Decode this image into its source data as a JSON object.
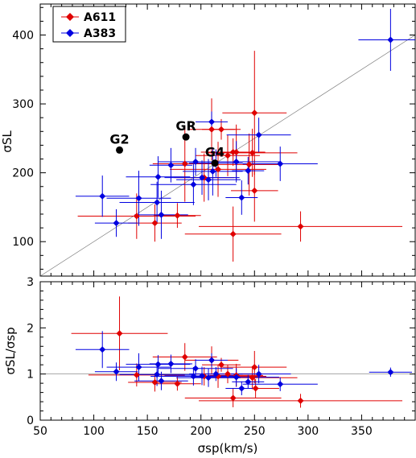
{
  "chart_data": [
    {
      "type": "scatter",
      "xlabel": "",
      "ylabel": "σSL",
      "xlim": [
        50,
        400
      ],
      "ylim": [
        50,
        445
      ],
      "x_ticks": [
        "50",
        "100",
        "150",
        "200",
        "250",
        "300",
        "350"
      ],
      "y_ticks": [
        "100",
        "200",
        "300",
        "400"
      ],
      "reference_line": "y = x",
      "legend": {
        "placement": "top-left",
        "entries": [
          "A611",
          "A383"
        ]
      },
      "series": [
        {
          "name": "A611",
          "color": "#e00000",
          "marker": "diamond",
          "points": [
            {
              "x": 140,
              "y": 137,
              "xerr": 55,
              "yerr": 33
            },
            {
              "x": 157,
              "y": 127,
              "xerr": 25,
              "yerr": 27
            },
            {
              "x": 178,
              "y": 138,
              "xerr": 22,
              "yerr": 18
            },
            {
              "x": 185,
              "y": 213,
              "xerr": 30,
              "yerr": 55
            },
            {
              "x": 203,
              "y": 193,
              "xerr": 28,
              "yerr": 35
            },
            {
              "x": 210,
              "y": 263,
              "xerr": 22,
              "yerr": 45
            },
            {
              "x": 216,
              "y": 205,
              "xerr": 45,
              "yerr": 40
            },
            {
              "x": 219,
              "y": 263,
              "xerr": 18,
              "yerr": 15
            },
            {
              "x": 225,
              "y": 225,
              "xerr": 30,
              "yerr": 30
            },
            {
              "x": 230,
              "y": 230,
              "xerr": 30,
              "yerr": 20
            },
            {
              "x": 233,
              "y": 230,
              "xerr": 25,
              "yerr": 40
            },
            {
              "x": 230,
              "y": 111,
              "xerr": 45,
              "yerr": 40
            },
            {
              "x": 245,
              "y": 212,
              "xerr": 30,
              "yerr": 45
            },
            {
              "x": 248,
              "y": 229,
              "xerr": 42,
              "yerr": 35
            },
            {
              "x": 250,
              "y": 287,
              "xerr": 30,
              "yerr": 90
            },
            {
              "x": 250,
              "y": 174,
              "xerr": 22,
              "yerr": 45
            },
            {
              "x": 293,
              "y": 122,
              "xerr": 95,
              "yerr": 22
            }
          ]
        },
        {
          "name": "A383",
          "color": "#0000e0",
          "marker": "diamond",
          "points": [
            {
              "x": 108,
              "y": 166,
              "xerr": 25,
              "yerr": 30
            },
            {
              "x": 121,
              "y": 127,
              "xerr": 20,
              "yerr": 20
            },
            {
              "x": 142,
              "y": 163,
              "xerr": 30,
              "yerr": 40
            },
            {
              "x": 159,
              "y": 157,
              "xerr": 35,
              "yerr": 30
            },
            {
              "x": 160,
              "y": 194,
              "xerr": 30,
              "yerr": 30
            },
            {
              "x": 163,
              "y": 139,
              "xerr": 25,
              "yerr": 35
            },
            {
              "x": 172,
              "y": 211,
              "xerr": 20,
              "yerr": 25
            },
            {
              "x": 193,
              "y": 183,
              "xerr": 40,
              "yerr": 30
            },
            {
              "x": 195,
              "y": 216,
              "xerr": 35,
              "yerr": 20
            },
            {
              "x": 201,
              "y": 193,
              "xerr": 35,
              "yerr": 25
            },
            {
              "x": 207,
              "y": 190,
              "xerr": 30,
              "yerr": 30
            },
            {
              "x": 210,
              "y": 274,
              "xerr": 15,
              "yerr": 15
            },
            {
              "x": 211,
              "y": 202,
              "xerr": 28,
              "yerr": 35
            },
            {
              "x": 214,
              "y": 214,
              "xerr": 25,
              "yerr": 20
            },
            {
              "x": 233,
              "y": 216,
              "xerr": 40,
              "yerr": 30
            },
            {
              "x": 238,
              "y": 164,
              "xerr": 15,
              "yerr": 25
            },
            {
              "x": 244,
              "y": 203,
              "xerr": 15,
              "yerr": 20
            },
            {
              "x": 254,
              "y": 255,
              "xerr": 30,
              "yerr": 25
            },
            {
              "x": 274,
              "y": 213,
              "xerr": 35,
              "yerr": 25
            },
            {
              "x": 377,
              "y": 393,
              "xerr": 30,
              "yerr": 45
            }
          ]
        }
      ],
      "annotations": [
        {
          "label": "G2",
          "x": 124,
          "y": 233
        },
        {
          "label": "GR",
          "x": 186,
          "y": 252
        },
        {
          "label": "G4",
          "x": 213,
          "y": 214
        }
      ]
    },
    {
      "type": "scatter",
      "xlabel": "σsp(km/s)",
      "ylabel": "σSL/σsp",
      "xlim": [
        50,
        400
      ],
      "ylim": [
        0,
        3
      ],
      "x_ticks": [
        "50",
        "100",
        "150",
        "200",
        "250",
        "300",
        "350"
      ],
      "y_ticks": [
        "0",
        "1",
        "2",
        "3"
      ],
      "reference_line": "y = 1",
      "series": [
        {
          "name": "A611",
          "color": "#e00000",
          "marker": "diamond",
          "points": [
            {
              "x": 124,
              "y": 1.88,
              "xerr": 45,
              "yerr": 0.8
            },
            {
              "x": 140,
              "y": 0.98,
              "xerr": 45,
              "yerr": 0.25
            },
            {
              "x": 157,
              "y": 0.82,
              "xerr": 25,
              "yerr": 0.2
            },
            {
              "x": 178,
              "y": 0.79,
              "xerr": 22,
              "yerr": 0.15
            },
            {
              "x": 185,
              "y": 1.37,
              "xerr": 30,
              "yerr": 0.3
            },
            {
              "x": 203,
              "y": 0.95,
              "xerr": 28,
              "yerr": 0.2
            },
            {
              "x": 210,
              "y": 1.3,
              "xerr": 25,
              "yerr": 0.3
            },
            {
              "x": 216,
              "y": 0.95,
              "xerr": 45,
              "yerr": 0.25
            },
            {
              "x": 219,
              "y": 1.2,
              "xerr": 18,
              "yerr": 0.15
            },
            {
              "x": 225,
              "y": 1.0,
              "xerr": 30,
              "yerr": 0.2
            },
            {
              "x": 230,
              "y": 0.48,
              "xerr": 45,
              "yerr": 0.2
            },
            {
              "x": 233,
              "y": 0.97,
              "xerr": 25,
              "yerr": 0.25
            },
            {
              "x": 248,
              "y": 0.92,
              "xerr": 42,
              "yerr": 0.25
            },
            {
              "x": 250,
              "y": 1.15,
              "xerr": 30,
              "yerr": 0.35
            },
            {
              "x": 251,
              "y": 0.69,
              "xerr": 22,
              "yerr": 0.2
            },
            {
              "x": 293,
              "y": 0.42,
              "xerr": 95,
              "yerr": 0.15
            }
          ]
        },
        {
          "name": "A383",
          "color": "#0000e0",
          "marker": "diamond",
          "points": [
            {
              "x": 108,
              "y": 1.53,
              "xerr": 25,
              "yerr": 0.4
            },
            {
              "x": 121,
              "y": 1.05,
              "xerr": 20,
              "yerr": 0.2
            },
            {
              "x": 142,
              "y": 1.15,
              "xerr": 30,
              "yerr": 0.3
            },
            {
              "x": 159,
              "y": 0.99,
              "xerr": 35,
              "yerr": 0.25
            },
            {
              "x": 160,
              "y": 1.21,
              "xerr": 30,
              "yerr": 0.2
            },
            {
              "x": 163,
              "y": 0.85,
              "xerr": 25,
              "yerr": 0.2
            },
            {
              "x": 172,
              "y": 1.22,
              "xerr": 20,
              "yerr": 0.2
            },
            {
              "x": 193,
              "y": 0.95,
              "xerr": 40,
              "yerr": 0.2
            },
            {
              "x": 195,
              "y": 1.12,
              "xerr": 35,
              "yerr": 0.2
            },
            {
              "x": 201,
              "y": 0.96,
              "xerr": 35,
              "yerr": 0.2
            },
            {
              "x": 207,
              "y": 0.92,
              "xerr": 30,
              "yerr": 0.2
            },
            {
              "x": 210,
              "y": 1.3,
              "xerr": 15,
              "yerr": 0.15
            },
            {
              "x": 214,
              "y": 1.0,
              "xerr": 25,
              "yerr": 0.15
            },
            {
              "x": 233,
              "y": 0.93,
              "xerr": 40,
              "yerr": 0.2
            },
            {
              "x": 238,
              "y": 0.69,
              "xerr": 15,
              "yerr": 0.15
            },
            {
              "x": 244,
              "y": 0.83,
              "xerr": 15,
              "yerr": 0.15
            },
            {
              "x": 254,
              "y": 1.0,
              "xerr": 30,
              "yerr": 0.2
            },
            {
              "x": 274,
              "y": 0.78,
              "xerr": 35,
              "yerr": 0.15
            },
            {
              "x": 377,
              "y": 1.04,
              "xerr": 20,
              "yerr": 0.1
            }
          ]
        }
      ]
    }
  ]
}
